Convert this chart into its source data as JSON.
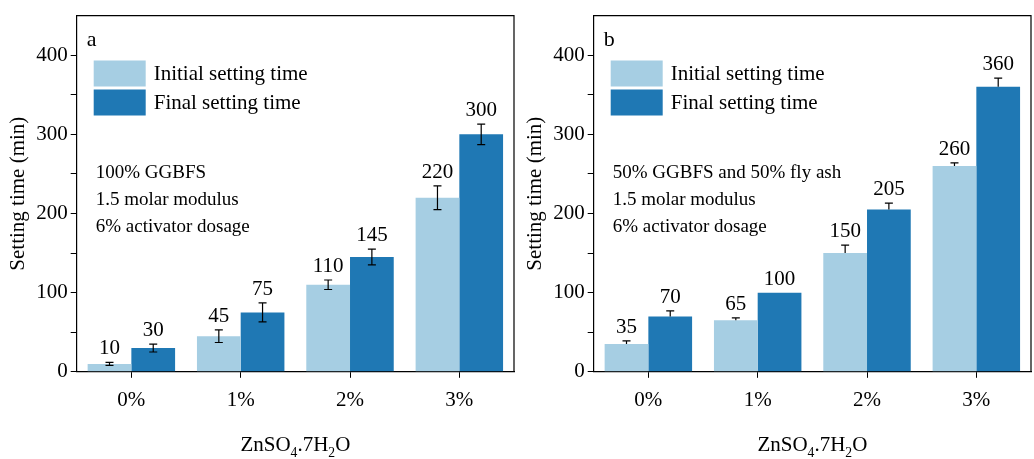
{
  "chart_data": [
    {
      "type": "bar",
      "ylabel": "Setting time (min)",
      "xlabel": "ZnSO$_{4}$.7H$_{2}$O",
      "categories": [
        "0%",
        "1%",
        "2%",
        "3%"
      ],
      "series": [
        {
          "name": "Initial setting time",
          "color": "#a6cee3",
          "values": [
            10,
            45,
            110,
            220
          ],
          "errors": [
            2,
            8,
            6,
            15
          ]
        },
        {
          "name": "Final setting time",
          "color": "#1f78b4",
          "values": [
            30,
            75,
            145,
            300
          ],
          "errors": [
            5,
            12,
            10,
            13
          ]
        }
      ],
      "ylim": [
        0,
        450
      ],
      "yticks": [
        0,
        {
          "value": 50,
          "label": null
        },
        100,
        {
          "value": 150,
          "label": null
        },
        200,
        {
          "value": 250,
          "label": null
        },
        300,
        {
          "value": 350,
          "label": null
        },
        400
      ],
      "grid": false,
      "legend": "top left",
      "data_labels": true,
      "annotations": [
        "a",
        "100% GGBFS",
        "1.5 molar modulus",
        "6% activator dosage"
      ]
    },
    {
      "type": "bar",
      "ylabel": "Setting time (min)",
      "xlabel": "ZnSO$_{4}$.7H$_{2}$O",
      "categories": [
        "0%",
        "1%",
        "2%",
        "3%"
      ],
      "series": [
        {
          "name": "Initial setting time",
          "color": "#a6cee3",
          "values": [
            35,
            65,
            150,
            260
          ],
          "errors": [
            [
              35,
              39
            ],
            [
              65,
              68
            ],
            [
              150,
              160
            ],
            [
              260,
              264
            ]
          ]
        },
        {
          "name": "Final setting time",
          "color": "#1f78b4",
          "values": [
            70,
            100,
            205,
            360
          ],
          "errors": [
            [
              70,
              77
            ],
            null,
            [
              205,
              213
            ],
            [
              360,
              371
            ]
          ]
        }
      ],
      "ylim": [
        0,
        450
      ],
      "yticks": [
        0,
        {
          "value": 50,
          "label": null
        },
        100,
        {
          "value": 150,
          "label": null
        },
        200,
        {
          "value": 250,
          "label": null
        },
        300,
        {
          "value": 350,
          "label": null
        },
        400
      ],
      "grid": false,
      "legend": "top left",
      "data_labels": true,
      "annotations": [
        "b",
        "50% GGBFS and 50% fly ash",
        "1.5 molar modulus",
        "6% activator dosage"
      ]
    }
  ]
}
